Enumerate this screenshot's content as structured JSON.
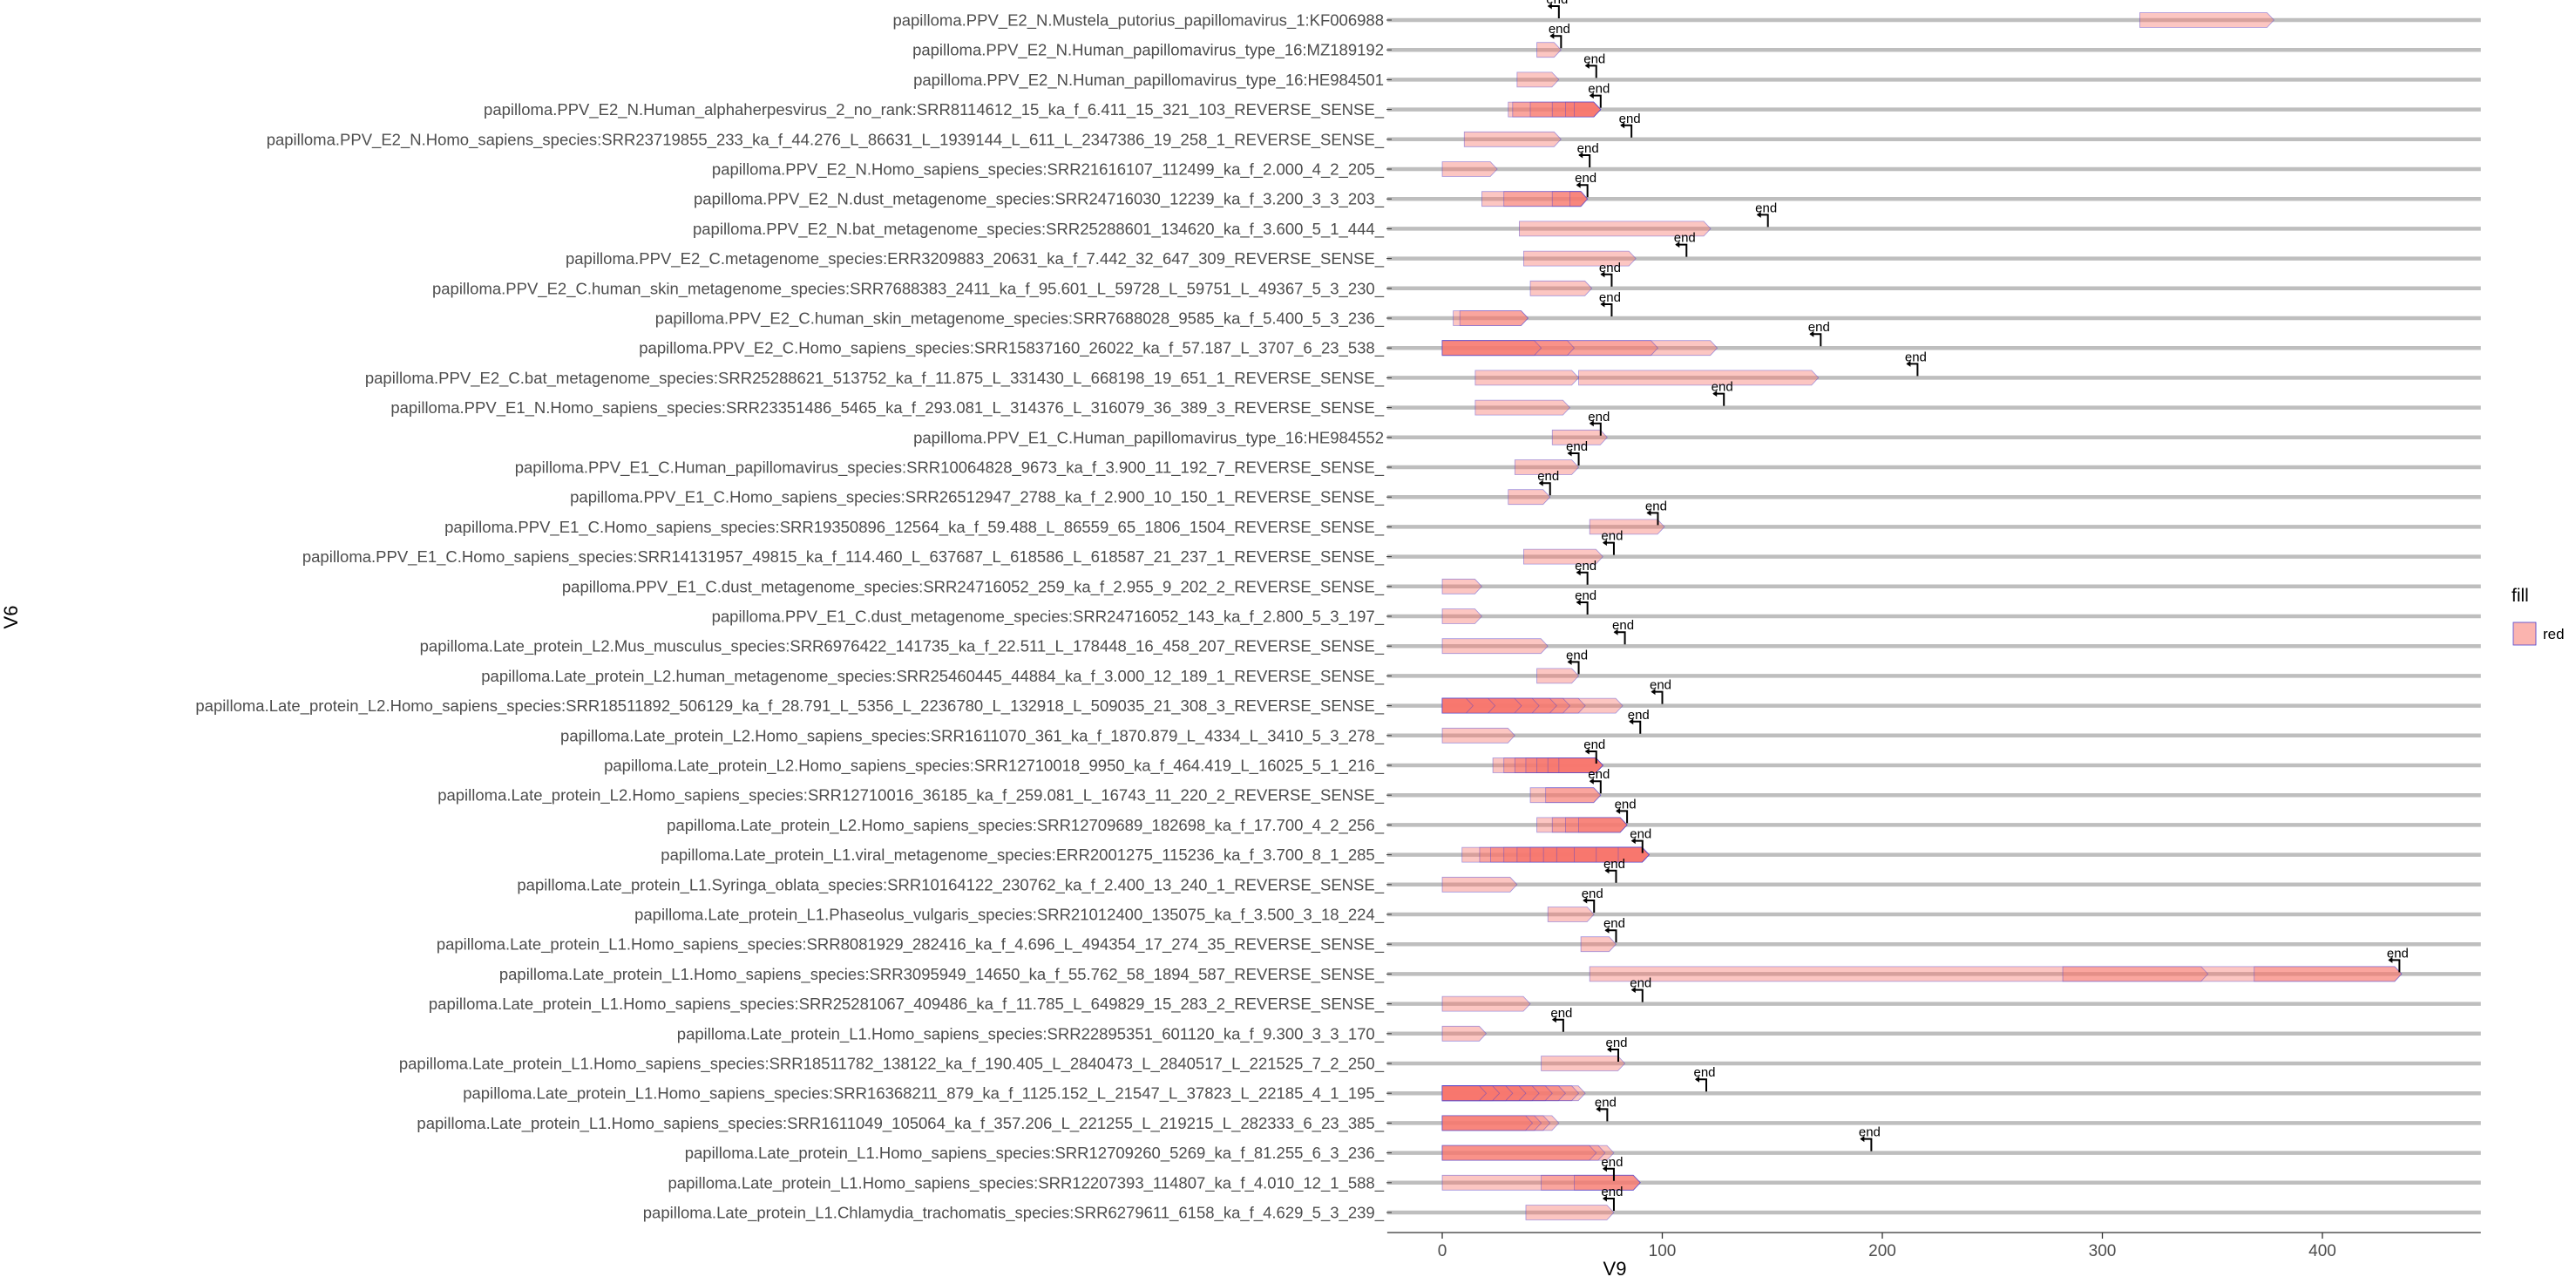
{
  "chart_data": {
    "type": "gene-arrow-map",
    "xlabel": "V9",
    "ylabel": "V6",
    "xlim": [
      -25,
      472
    ],
    "xticks": [
      0,
      100,
      200,
      300,
      400
    ],
    "legend": {
      "title": "fill",
      "label": "red",
      "placement": "right"
    },
    "colors": {
      "arrow_fill": "#f8766d",
      "arrow_outline": "#4b3fd1",
      "track": "#bebebe",
      "axis": "#333333",
      "tick_text": "#4d4d4d"
    },
    "end_text": "end",
    "rows": [
      {
        "label": "papilloma.PPV_E2_N.Mustela_putorius_papillomavirus_1:KF006988",
        "segments": [
          [
            317,
            378
          ]
        ],
        "marker": 53
      },
      {
        "label": "papilloma.PPV_E2_N.Human_papillomavirus_type_16:MZ189192",
        "segments": [
          [
            43,
            54
          ]
        ],
        "marker": 54
      },
      {
        "label": "papilloma.PPV_E2_N.Human_papillomavirus_type_16:HE984501",
        "segments": [
          [
            34,
            53
          ]
        ],
        "marker": 70
      },
      {
        "label": "papilloma.PPV_E2_N.Human_alphaherpesvirus_2_no_rank:SRR8114612_15_ka_f_6.411_15_321_103_REVERSE_SENSE_",
        "segments": [
          [
            30,
            72
          ],
          [
            32,
            72
          ],
          [
            40,
            72
          ],
          [
            50,
            72
          ],
          [
            56,
            72
          ],
          [
            60,
            72
          ]
        ],
        "marker": 72
      },
      {
        "label": "papilloma.PPV_E2_N.Homo_sapiens_species:SRR23719855_233_ka_f_44.276_L_86631_L_1939144_L_611_L_2347386_19_258_1_REVERSE_SENSE_",
        "segments": [
          [
            10,
            54
          ]
        ],
        "marker": 86
      },
      {
        "label": "papilloma.PPV_E2_N.Homo_sapiens_species:SRR21616107_112499_ka_f_2.000_4_2_205_",
        "segments": [
          [
            0,
            25
          ]
        ],
        "marker": 67
      },
      {
        "label": "papilloma.PPV_E2_N.dust_metagenome_species:SRR24716030_12239_ka_f_3.200_3_3_203_",
        "segments": [
          [
            18,
            66
          ],
          [
            28,
            66
          ],
          [
            50,
            66
          ],
          [
            58,
            66
          ]
        ],
        "marker": 66
      },
      {
        "label": "papilloma.PPV_E2_N.bat_metagenome_species:SRR25288601_134620_ka_f_3.600_5_1_444_",
        "segments": [
          [
            35,
            122
          ]
        ],
        "marker": 148
      },
      {
        "label": "papilloma.PPV_E2_C.metagenome_species:ERR3209883_20631_ka_f_7.442_32_647_309_REVERSE_SENSE_",
        "segments": [
          [
            37,
            88
          ]
        ],
        "marker": 111
      },
      {
        "label": "papilloma.PPV_E2_C.human_skin_metagenome_species:SRR7688383_2411_ka_f_95.601_L_59728_L_59751_L_49367_5_3_230_",
        "segments": [
          [
            40,
            68
          ]
        ],
        "marker": 77
      },
      {
        "label": "papilloma.PPV_E2_C.human_skin_metagenome_species:SRR7688028_9585_ka_f_5.400_5_3_236_",
        "segments": [
          [
            5,
            39
          ],
          [
            8,
            39
          ]
        ],
        "marker": 77
      },
      {
        "label": "papilloma.PPV_E2_C.Homo_sapiens_species:SRR15837160_26022_ka_f_57.187_L_3707_6_23_538_",
        "segments": [
          [
            0,
            125
          ],
          [
            0,
            98
          ],
          [
            0,
            60
          ],
          [
            0,
            45
          ]
        ],
        "marker": 172
      },
      {
        "label": "papilloma.PPV_E2_C.bat_metagenome_species:SRR25288621_513752_ka_f_11.875_L_331430_L_668198_19_651_1_REVERSE_SENSE_",
        "segments": [
          [
            15,
            62
          ],
          [
            62,
            171
          ]
        ],
        "marker": 216
      },
      {
        "label": "papilloma.PPV_E1_N.Homo_sapiens_species:SRR23351486_5465_ka_f_293.081_L_314376_L_316079_36_389_3_REVERSE_SENSE_",
        "segments": [
          [
            15,
            58
          ]
        ],
        "marker": 128
      },
      {
        "label": "papilloma.PPV_E1_C.Human_papillomavirus_type_16:HE984552",
        "segments": [
          [
            50,
            75
          ]
        ],
        "marker": 72
      },
      {
        "label": "papilloma.PPV_E1_C.Human_papillomavirus_species:SRR10064828_9673_ka_f_3.900_11_192_7_REVERSE_SENSE_",
        "segments": [
          [
            33,
            62
          ]
        ],
        "marker": 62
      },
      {
        "label": "papilloma.PPV_E1_C.Homo_sapiens_species:SRR26512947_2788_ka_f_2.900_10_150_1_REVERSE_SENSE_",
        "segments": [
          [
            30,
            49
          ]
        ],
        "marker": 49
      },
      {
        "label": "papilloma.PPV_E1_C.Homo_sapiens_species:SRR19350896_12564_ka_f_59.488_L_86559_65_1806_1504_REVERSE_SENSE_",
        "segments": [
          [
            67,
            101
          ]
        ],
        "marker": 98
      },
      {
        "label": "papilloma.PPV_E1_C.Homo_sapiens_species:SRR14131957_49815_ka_f_114.460_L_637687_L_618586_L_618587_21_237_1_REVERSE_SENSE_",
        "segments": [
          [
            37,
            73
          ]
        ],
        "marker": 78
      },
      {
        "label": "papilloma.PPV_E1_C.dust_metagenome_species:SRR24716052_259_ka_f_2.955_9_202_2_REVERSE_SENSE_",
        "segments": [
          [
            0,
            18
          ]
        ],
        "marker": 66
      },
      {
        "label": "papilloma.PPV_E1_C.dust_metagenome_species:SRR24716052_143_ka_f_2.800_5_3_197_",
        "segments": [
          [
            0,
            18
          ]
        ],
        "marker": 66
      },
      {
        "label": "papilloma.Late_protein_L2.Mus_musculus_species:SRR6976422_141735_ka_f_22.511_L_178448_16_458_207_REVERSE_SENSE_",
        "segments": [
          [
            0,
            48
          ]
        ],
        "marker": 83
      },
      {
        "label": "papilloma.Late_protein_L2.human_metagenome_species:SRR25460445_44884_ka_f_3.000_12_189_1_REVERSE_SENSE_",
        "segments": [
          [
            43,
            62
          ]
        ],
        "marker": 62
      },
      {
        "label": "papilloma.Late_protein_L2.Homo_sapiens_species:SRR18511892_506129_ka_f_28.791_L_5356_L_2236780_L_132918_L_509035_21_308_3_REVERSE_SENSE_",
        "segments": [
          [
            0,
            82
          ],
          [
            0,
            65
          ],
          [
            0,
            58
          ],
          [
            0,
            52
          ],
          [
            0,
            44
          ],
          [
            0,
            36
          ],
          [
            0,
            24
          ],
          [
            0,
            14
          ]
        ],
        "marker": 100
      },
      {
        "label": "papilloma.Late_protein_L2.Homo_sapiens_species:SRR1611070_361_ka_f_1870.879_L_4334_L_3410_5_3_278_",
        "segments": [
          [
            0,
            33
          ]
        ],
        "marker": 90
      },
      {
        "label": "papilloma.Late_protein_L2.Homo_sapiens_species:SRR12710018_9950_ka_f_464.419_L_16025_5_1_216_",
        "segments": [
          [
            23,
            73
          ],
          [
            28,
            73
          ],
          [
            33,
            73
          ],
          [
            38,
            73
          ],
          [
            43,
            73
          ],
          [
            48,
            73
          ],
          [
            53,
            73
          ]
        ],
        "marker": 70
      },
      {
        "label": "papilloma.Late_protein_L2.Homo_sapiens_species:SRR12710016_36185_ka_f_259.081_L_16743_11_220_2_REVERSE_SENSE_",
        "segments": [
          [
            40,
            72
          ],
          [
            47,
            72
          ]
        ],
        "marker": 72
      },
      {
        "label": "papilloma.Late_protein_L2.Homo_sapiens_species:SRR12709689_182698_ka_f_17.700_4_2_256_",
        "segments": [
          [
            43,
            84
          ],
          [
            50,
            84
          ],
          [
            56,
            84
          ],
          [
            62,
            84
          ]
        ],
        "marker": 84
      },
      {
        "label": "papilloma.Late_protein_L1.viral_metagenome_species:ERR2001275_115236_ka_f_3.700_8_1_285_",
        "segments": [
          [
            9,
            94
          ],
          [
            17,
            94
          ],
          [
            22,
            94
          ],
          [
            28,
            94
          ],
          [
            34,
            94
          ],
          [
            40,
            94
          ],
          [
            46,
            94
          ],
          [
            52,
            94
          ],
          [
            60,
            94
          ],
          [
            70,
            94
          ],
          [
            80,
            94
          ]
        ],
        "marker": 91
      },
      {
        "label": "papilloma.Late_protein_L1.Syringa_oblata_species:SRR10164122_230762_ka_f_2.400_13_240_1_REVERSE_SENSE_",
        "segments": [
          [
            0,
            34
          ]
        ],
        "marker": 79
      },
      {
        "label": "papilloma.Late_protein_L1.Phaseolus_vulgaris_species:SRR21012400_135075_ka_f_3.500_3_18_224_",
        "segments": [
          [
            48,
            69
          ]
        ],
        "marker": 69
      },
      {
        "label": "papilloma.Late_protein_L1.Homo_sapiens_species:SRR8081929_282416_ka_f_4.696_L_494354_17_274_35_REVERSE_SENSE_",
        "segments": [
          [
            63,
            79
          ]
        ],
        "marker": 79
      },
      {
        "label": "papilloma.Late_protein_L1.Homo_sapiens_species:SRR3095949_14650_ka_f_55.762_58_1894_587_REVERSE_SENSE_",
        "segments": [
          [
            67,
            436
          ],
          [
            282,
            348
          ],
          [
            369,
            436
          ]
        ],
        "marker": 435
      },
      {
        "label": "papilloma.Late_protein_L1.Homo_sapiens_species:SRR25281067_409486_ka_f_11.785_L_649829_15_283_2_REVERSE_SENSE_",
        "segments": [
          [
            0,
            40
          ]
        ],
        "marker": 91
      },
      {
        "label": "papilloma.Late_protein_L1.Homo_sapiens_species:SRR22895351_601120_ka_f_9.300_3_3_170_",
        "segments": [
          [
            0,
            20
          ]
        ],
        "marker": 55
      },
      {
        "label": "papilloma.Late_protein_L1.Homo_sapiens_species:SRR18511782_138122_ka_f_190.405_L_2840473_L_2840517_L_221525_7_2_250_",
        "segments": [
          [
            45,
            83
          ]
        ],
        "marker": 80
      },
      {
        "label": "papilloma.Late_protein_L1.Homo_sapiens_species:SRR16368211_879_ka_f_1125.152_L_21547_L_37823_L_22185_4_1_195_",
        "segments": [
          [
            0,
            65
          ],
          [
            0,
            62
          ],
          [
            0,
            56
          ],
          [
            0,
            50
          ],
          [
            0,
            44
          ],
          [
            0,
            38
          ],
          [
            0,
            32
          ],
          [
            0,
            26
          ],
          [
            0,
            20
          ]
        ],
        "marker": 120
      },
      {
        "label": "papilloma.Late_protein_L1.Homo_sapiens_species:SRR1611049_105064_ka_f_357.206_L_221255_L_219215_L_282333_6_23_385_",
        "segments": [
          [
            0,
            53
          ],
          [
            0,
            49
          ],
          [
            0,
            45
          ],
          [
            0,
            41
          ]
        ],
        "marker": 75
      },
      {
        "label": "papilloma.Late_protein_L1.Homo_sapiens_species:SRR12709260_5269_ka_f_81.255_6_3_236_",
        "segments": [
          [
            0,
            78
          ],
          [
            0,
            74
          ],
          [
            0,
            70
          ]
        ],
        "marker": 195
      },
      {
        "label": "papilloma.Late_protein_L1.Homo_sapiens_species:SRR12207393_114807_ka_f_4.010_12_1_588_",
        "segments": [
          [
            0,
            90
          ],
          [
            45,
            90
          ],
          [
            60,
            90
          ]
        ],
        "marker": 78
      },
      {
        "label": "papilloma.Late_protein_L1.Chlamydia_trachomatis_species:SRR6279611_6158_ka_f_4.629_5_3_239_",
        "segments": [
          [
            38,
            78
          ]
        ],
        "marker": 78
      }
    ]
  }
}
